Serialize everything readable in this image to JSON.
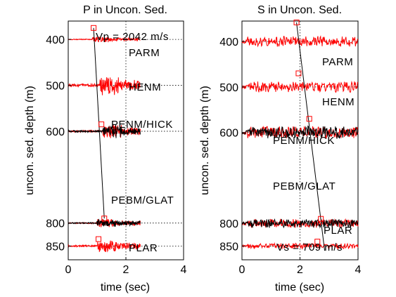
{
  "chart_data": [
    {
      "type": "line",
      "title": "P  in Uncon. Sed.",
      "xlabel": "time (sec)",
      "ylabel": "uncon. sed. depth (m)",
      "xlim": [
        0,
        4
      ],
      "ylim": [
        880,
        360
      ],
      "y_reversed": true,
      "xticks": [
        "0",
        "2",
        "4"
      ],
      "yticks": [
        "400",
        "500",
        "600",
        "800",
        "850"
      ],
      "grid": "dotted line at time 2 and at each station depth",
      "annotation": "Vp = 2042 m/s",
      "stations": [
        {
          "name": "PARM",
          "depth": 400
        },
        {
          "name": "HENM",
          "depth": 500
        },
        {
          "name": "PENM/HICK",
          "depth": 600
        },
        {
          "name": "PEBM/GLAT",
          "depth": 800
        },
        {
          "name": "PLAR",
          "depth": 850
        }
      ],
      "picks": [
        {
          "depth": 375,
          "time": 0.88
        },
        {
          "depth": 585,
          "time": 1.15
        },
        {
          "depth": 790,
          "time": 1.25
        },
        {
          "depth": 835,
          "time": 1.05
        }
      ],
      "velocity_line": {
        "from": [
          0.88,
          375
        ],
        "to": [
          1.25,
          790
        ]
      },
      "colors": {
        "traces": [
          "#ff0000",
          "#000000"
        ],
        "picks": "#ff0000",
        "velocity_line": "#000000",
        "grid": "#000000"
      }
    },
    {
      "type": "line",
      "title": "S  in Uncon. Sed.",
      "xlabel": "time (sec)",
      "ylabel": "uncon. sed. depth (m)",
      "xlim": [
        0,
        4
      ],
      "ylim": [
        880,
        355
      ],
      "y_reversed": true,
      "xticks": [
        "0",
        "2",
        "4"
      ],
      "yticks": [
        "400",
        "500",
        "600",
        "800",
        "850"
      ],
      "grid": "dotted line at time 2 and at each station depth",
      "annotation": "Vs = 709 m/s",
      "stations": [
        {
          "name": "PARM",
          "depth": 400
        },
        {
          "name": "HENM",
          "depth": 500
        },
        {
          "name": "PENM/HICK",
          "depth": 600
        },
        {
          "name": "PEBM/GLAT",
          "depth": 800
        },
        {
          "name": "PLAR",
          "depth": 850
        }
      ],
      "picks": [
        {
          "depth": 358,
          "time": 1.88
        },
        {
          "depth": 470,
          "time": 1.95
        },
        {
          "depth": 570,
          "time": 2.32
        },
        {
          "depth": 790,
          "time": 2.72
        },
        {
          "depth": 840,
          "time": 2.6
        }
      ],
      "velocity_line": {
        "from": [
          1.88,
          358
        ],
        "to": [
          2.85,
          860
        ]
      },
      "colors": {
        "traces": [
          "#ff0000",
          "#000000"
        ],
        "picks": "#ff0000",
        "velocity_line": "#000000",
        "grid": "#000000"
      }
    }
  ]
}
